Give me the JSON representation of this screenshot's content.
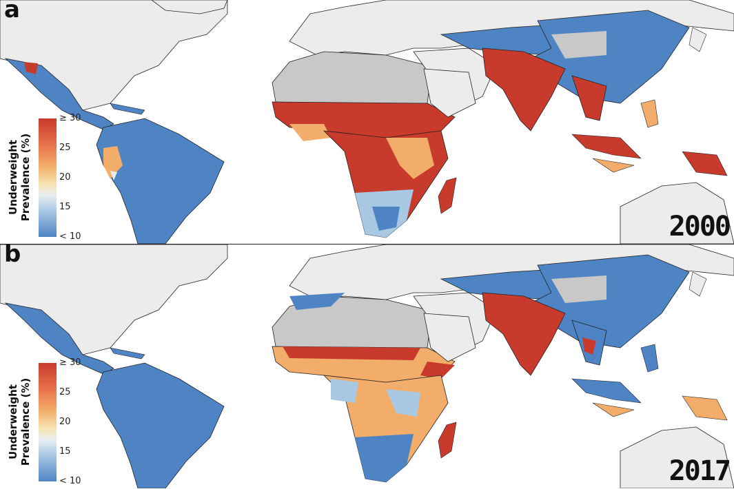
{
  "panels": [
    {
      "letter": "a",
      "year": "2000"
    },
    {
      "letter": "b",
      "year": "2017"
    }
  ],
  "legend": {
    "title": "Underweight Prevalence (%)",
    "ticks": [
      "≥ 30",
      "25",
      "20",
      "15",
      "< 10"
    ]
  },
  "colors": {
    "high": "#c83a2c",
    "mid_high": "#f3ad6a",
    "mid": "#f7e3b0",
    "low": "#4e84c4",
    "no_data": "#c8c8c8",
    "outside": "#ececec"
  }
}
